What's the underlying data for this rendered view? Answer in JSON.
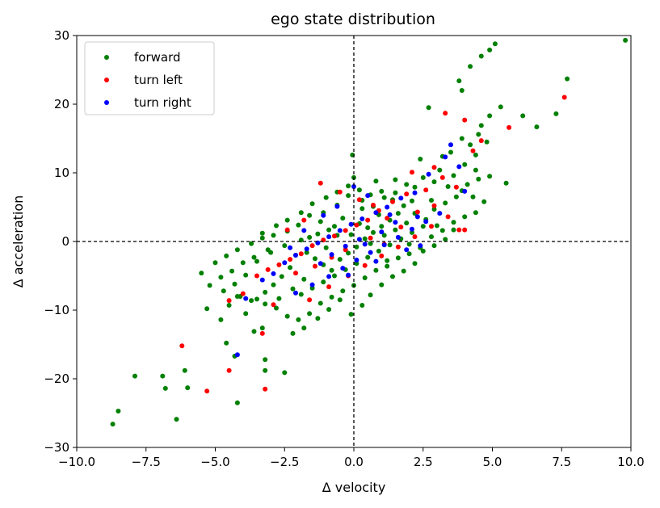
{
  "chart_data": {
    "type": "scatter",
    "title": "ego state distribution",
    "xlabel": "Δ velocity",
    "ylabel": "Δ acceleration",
    "xlim": [
      -10.0,
      10.0
    ],
    "ylim": [
      -30,
      30
    ],
    "xticks": [
      "−10.0",
      "−7.5",
      "−5.0",
      "−2.5",
      "0.0",
      "2.5",
      "5.0",
      "7.5",
      "10.0"
    ],
    "yticks": [
      "−30",
      "−20",
      "−10",
      "0",
      "10",
      "20",
      "30"
    ],
    "grid": false,
    "legend_position": "top-left",
    "reference_lines": {
      "x": 0,
      "y": 0,
      "style": "dashed"
    },
    "series": [
      {
        "name": "forward",
        "color": "#008000",
        "points": [
          [
            9.8,
            29.3
          ],
          [
            5.1,
            28.8
          ],
          [
            4.9,
            27.9
          ],
          [
            4.6,
            27.0
          ],
          [
            4.2,
            25.5
          ],
          [
            3.8,
            23.4
          ],
          [
            7.7,
            23.7
          ],
          [
            3.9,
            22.0
          ],
          [
            2.7,
            19.5
          ],
          [
            5.3,
            19.6
          ],
          [
            6.1,
            18.3
          ],
          [
            7.3,
            18.6
          ],
          [
            4.9,
            18.3
          ],
          [
            4.6,
            16.9
          ],
          [
            6.6,
            16.7
          ],
          [
            4.5,
            15.6
          ],
          [
            3.9,
            15.0
          ],
          [
            4.8,
            14.5
          ],
          [
            4.2,
            14.1
          ],
          [
            3.5,
            13.0
          ],
          [
            3.2,
            12.4
          ],
          [
            4.4,
            12.6
          ],
          [
            -0.05,
            12.6
          ],
          [
            2.4,
            12.0
          ],
          [
            5.5,
            8.5
          ],
          [
            4.9,
            9.5
          ],
          [
            4.4,
            10.4
          ],
          [
            4.0,
            11.2
          ],
          [
            3.6,
            9.6
          ],
          [
            3.1,
            10.4
          ],
          [
            2.9,
            8.7
          ],
          [
            2.5,
            9.3
          ],
          [
            2.2,
            7.9
          ],
          [
            1.9,
            8.3
          ],
          [
            1.5,
            7.1
          ],
          [
            1.1,
            6.4
          ],
          [
            0.7,
            5.1
          ],
          [
            0.3,
            6.0
          ],
          [
            -0.2,
            6.7
          ],
          [
            -0.6,
            5.3
          ],
          [
            -1.1,
            4.2
          ],
          [
            -1.6,
            3.8
          ],
          [
            -2.0,
            2.4
          ],
          [
            -2.4,
            1.5
          ],
          [
            -2.9,
            0.9
          ],
          [
            -3.3,
            0.5
          ],
          [
            -3.1,
            -1.2
          ],
          [
            -3.6,
            -2.3
          ],
          [
            -4.0,
            -3.1
          ],
          [
            -4.4,
            -4.3
          ],
          [
            -4.8,
            -5.2
          ],
          [
            -5.2,
            -6.4
          ],
          [
            -4.7,
            -7.2
          ],
          [
            -4.2,
            -8.0
          ],
          [
            -3.7,
            -8.6
          ],
          [
            -3.2,
            -9.1
          ],
          [
            -2.8,
            -9.7
          ],
          [
            -2.4,
            -10.9
          ],
          [
            -2.0,
            -11.4
          ],
          [
            -1.6,
            -10.5
          ],
          [
            -1.2,
            -9.0
          ],
          [
            -0.8,
            -8.1
          ],
          [
            -0.4,
            -7.2
          ],
          [
            0.0,
            -6.4
          ],
          [
            0.4,
            -5.3
          ],
          [
            0.8,
            -4.2
          ],
          [
            1.2,
            -3.6
          ],
          [
            1.6,
            -2.4
          ],
          [
            2.0,
            -1.8
          ],
          [
            2.4,
            -0.9
          ],
          [
            2.8,
            0.7
          ],
          [
            3.2,
            1.6
          ],
          [
            3.6,
            2.8
          ],
          [
            4.0,
            3.6
          ],
          [
            4.4,
            4.2
          ],
          [
            4.7,
            5.8
          ],
          [
            4.3,
            6.5
          ],
          [
            3.9,
            7.4
          ],
          [
            -8.7,
            -26.6
          ],
          [
            -8.5,
            -24.7
          ],
          [
            -7.9,
            -19.6
          ],
          [
            -6.9,
            -19.6
          ],
          [
            -6.8,
            -21.4
          ],
          [
            -6.1,
            -18.8
          ],
          [
            -6.0,
            -21.3
          ],
          [
            -6.4,
            -25.9
          ],
          [
            -4.2,
            -23.5
          ],
          [
            -4.3,
            -16.7
          ],
          [
            -3.2,
            -17.2
          ],
          [
            -3.2,
            -18.8
          ],
          [
            -2.5,
            -19.1
          ],
          [
            -4.6,
            -14.8
          ],
          [
            -3.6,
            -13.1
          ],
          [
            -4.8,
            -11.4
          ],
          [
            -5.3,
            -9.8
          ],
          [
            -4.5,
            -9.3
          ],
          [
            -3.9,
            -10.5
          ],
          [
            -3.3,
            -12.6
          ],
          [
            -2.2,
            -13.4
          ],
          [
            -1.8,
            -12.6
          ],
          [
            -1.3,
            -11.2
          ],
          [
            -0.9,
            -9.9
          ],
          [
            -0.5,
            -8.5
          ],
          [
            -0.1,
            -10.6
          ],
          [
            0.3,
            -9.3
          ],
          [
            0.6,
            -7.8
          ],
          [
            1.0,
            -6.3
          ],
          [
            1.4,
            -5.1
          ],
          [
            1.8,
            -4.3
          ],
          [
            2.2,
            -3.2
          ],
          [
            2.5,
            -1.4
          ],
          [
            2.9,
            -0.6
          ],
          [
            3.3,
            0.3
          ],
          [
            3.6,
            1.7
          ],
          [
            -5.5,
            -4.6
          ],
          [
            -5.0,
            -3.1
          ],
          [
            -4.6,
            -2.1
          ],
          [
            -4.2,
            -1.2
          ],
          [
            -3.7,
            -0.3
          ],
          [
            -3.3,
            1.2
          ],
          [
            -2.8,
            2.3
          ],
          [
            -2.4,
            3.1
          ],
          [
            -1.9,
            4.2
          ],
          [
            -1.5,
            5.5
          ],
          [
            -1.0,
            6.4
          ],
          [
            -0.6,
            7.2
          ],
          [
            -0.2,
            8.1
          ],
          [
            0.2,
            7.5
          ],
          [
            0.6,
            6.8
          ],
          [
            1.0,
            7.3
          ],
          [
            1.4,
            6.1
          ],
          [
            1.8,
            5.2
          ],
          [
            2.2,
            4.1
          ],
          [
            2.6,
            3.2
          ],
          [
            3.0,
            2.3
          ],
          [
            -1.7,
            -1.6
          ],
          [
            -1.4,
            -2.5
          ],
          [
            -1.1,
            -3.4
          ],
          [
            -0.8,
            -4.2
          ],
          [
            -0.5,
            -2.6
          ],
          [
            -0.2,
            -1.7
          ],
          [
            0.1,
            -0.8
          ],
          [
            0.4,
            0.4
          ],
          [
            0.7,
            1.3
          ],
          [
            1.0,
            2.2
          ],
          [
            1.3,
            3.1
          ],
          [
            1.6,
            4.1
          ],
          [
            1.9,
            2.7
          ],
          [
            -2.3,
            -3.8
          ],
          [
            -2.6,
            -5.1
          ],
          [
            -2.9,
            -6.3
          ],
          [
            -3.2,
            -7.4
          ],
          [
            -3.5,
            -8.4
          ],
          [
            -1.9,
            -7.7
          ],
          [
            -1.5,
            -6.8
          ],
          [
            -1.1,
            -5.9
          ],
          [
            -0.7,
            -5.0
          ],
          [
            -0.3,
            -4.1
          ],
          [
            0.1,
            -3.2
          ],
          [
            0.5,
            -2.3
          ],
          [
            0.9,
            -1.4
          ],
          [
            1.3,
            -0.5
          ],
          [
            1.7,
            0.4
          ],
          [
            2.1,
            1.3
          ],
          [
            2.5,
            2.2
          ],
          [
            2.9,
            4.7
          ],
          [
            3.3,
            5.6
          ],
          [
            3.7,
            6.5
          ],
          [
            4.1,
            8.3
          ],
          [
            4.5,
            9.1
          ],
          [
            3.4,
            8.0
          ],
          [
            2.8,
            6.0
          ],
          [
            2.1,
            5.9
          ],
          [
            1.5,
            9.0
          ],
          [
            0.8,
            8.8
          ],
          [
            0.0,
            9.3
          ],
          [
            -0.7,
            2.2
          ],
          [
            -1.3,
            1.1
          ],
          [
            -1.9,
            0.2
          ],
          [
            -2.5,
            -0.6
          ],
          [
            -3.0,
            -1.6
          ],
          [
            -3.5,
            -2.9
          ],
          [
            -3.9,
            -4.9
          ],
          [
            -4.3,
            -6.2
          ],
          [
            -4.1,
            -8.0
          ],
          [
            -2.7,
            -8.3
          ],
          [
            -2.2,
            -6.9
          ],
          [
            -1.8,
            -5.5
          ],
          [
            -1.0,
            -0.9
          ],
          [
            -0.6,
            0.9
          ],
          [
            0.2,
            2.6
          ],
          [
            0.9,
            3.9
          ],
          [
            1.5,
            1.7
          ],
          [
            2.0,
            -0.4
          ],
          [
            1.2,
            -2.8
          ],
          [
            0.6,
            -0.3
          ],
          [
            -0.4,
            3.4
          ],
          [
            -1.2,
            2.9
          ],
          [
            -1.6,
            0.6
          ],
          [
            -2.1,
            -2.0
          ],
          [
            -0.9,
            1.7
          ],
          [
            0.3,
            4.8
          ],
          [
            1.1,
            0.9
          ],
          [
            -0.1,
            1.0
          ],
          [
            0.5,
            2.0
          ]
        ]
      },
      {
        "name": "turn left",
        "color": "#ff0000",
        "points": [
          [
            7.6,
            21.0
          ],
          [
            5.6,
            16.6
          ],
          [
            4.0,
            17.7
          ],
          [
            3.3,
            18.7
          ],
          [
            4.3,
            13.2
          ],
          [
            4.6,
            14.7
          ],
          [
            2.9,
            10.8
          ],
          [
            2.1,
            10.1
          ],
          [
            3.2,
            9.3
          ],
          [
            3.7,
            7.9
          ],
          [
            2.6,
            7.5
          ],
          [
            1.9,
            6.9
          ],
          [
            1.4,
            5.8
          ],
          [
            0.9,
            4.5
          ],
          [
            0.5,
            3.1
          ],
          [
            0.1,
            2.4
          ],
          [
            -0.3,
            1.6
          ],
          [
            -0.7,
            0.8
          ],
          [
            -1.1,
            0.2
          ],
          [
            -1.5,
            -0.6
          ],
          [
            -1.9,
            -1.8
          ],
          [
            -2.3,
            -2.6
          ],
          [
            -2.7,
            -3.4
          ],
          [
            -3.1,
            -4.1
          ],
          [
            -3.5,
            -5.0
          ],
          [
            -4.0,
            -7.6
          ],
          [
            -4.5,
            -8.6
          ],
          [
            -3.3,
            -13.4
          ],
          [
            -4.5,
            -18.8
          ],
          [
            -5.3,
            -21.8
          ],
          [
            -3.2,
            -21.5
          ],
          [
            -6.2,
            -15.2
          ],
          [
            -2.9,
            -9.2
          ],
          [
            -1.6,
            -8.5
          ],
          [
            -0.9,
            -6.6
          ],
          [
            -0.2,
            -5.0
          ],
          [
            0.4,
            -3.5
          ],
          [
            1.0,
            -2.1
          ],
          [
            1.6,
            -0.8
          ],
          [
            2.2,
            0.7
          ],
          [
            2.8,
            2.2
          ],
          [
            3.4,
            3.6
          ],
          [
            4.0,
            1.7
          ],
          [
            3.8,
            1.7
          ],
          [
            -1.2,
            8.5
          ],
          [
            -0.5,
            7.2
          ],
          [
            0.2,
            6.1
          ],
          [
            0.7,
            5.3
          ],
          [
            1.2,
            3.4
          ],
          [
            1.7,
            2.1
          ],
          [
            2.3,
            4.3
          ],
          [
            2.9,
            5.2
          ],
          [
            -1.8,
            3.1
          ],
          [
            -2.4,
            1.7
          ],
          [
            -0.8,
            -2.3
          ],
          [
            -0.3,
            -1.2
          ],
          [
            0.6,
            0.5
          ],
          [
            1.1,
            -0.4
          ],
          [
            -2.1,
            -4.6
          ],
          [
            -1.4,
            -3.6
          ]
        ]
      },
      {
        "name": "turn right",
        "color": "#0000ff",
        "points": [
          [
            3.5,
            14.1
          ],
          [
            3.3,
            12.3
          ],
          [
            2.7,
            9.8
          ],
          [
            4.0,
            7.3
          ],
          [
            3.8,
            10.9
          ],
          [
            2.2,
            7.1
          ],
          [
            1.7,
            6.3
          ],
          [
            1.2,
            5.0
          ],
          [
            0.8,
            4.2
          ],
          [
            0.3,
            3.3
          ],
          [
            -0.1,
            2.5
          ],
          [
            -0.5,
            1.6
          ],
          [
            -0.9,
            0.7
          ],
          [
            -1.3,
            -0.2
          ],
          [
            -1.7,
            -1.1
          ],
          [
            -2.1,
            -2.0
          ],
          [
            -2.5,
            -3.1
          ],
          [
            -2.9,
            -4.7
          ],
          [
            -3.3,
            -5.6
          ],
          [
            -3.9,
            -8.3
          ],
          [
            -4.2,
            -16.5
          ],
          [
            -2.1,
            -7.5
          ],
          [
            -1.5,
            -6.3
          ],
          [
            -0.9,
            -5.1
          ],
          [
            -0.4,
            -3.9
          ],
          [
            0.1,
            -2.7
          ],
          [
            0.6,
            -1.6
          ],
          [
            1.1,
            -0.5
          ],
          [
            1.6,
            0.6
          ],
          [
            2.1,
            1.8
          ],
          [
            2.6,
            2.9
          ],
          [
            3.1,
            4.1
          ],
          [
            2.4,
            -0.6
          ],
          [
            -0.6,
            5.1
          ],
          [
            -1.1,
            3.8
          ],
          [
            0.5,
            6.7
          ],
          [
            1.5,
            2.8
          ],
          [
            1.0,
            1.4
          ],
          [
            0.2,
            0.3
          ],
          [
            -0.3,
            -0.7
          ],
          [
            -0.8,
            -1.9
          ],
          [
            -1.2,
            -3.2
          ],
          [
            0.8,
            -2.9
          ],
          [
            1.9,
            -1.2
          ],
          [
            2.3,
            3.6
          ],
          [
            -1.8,
            1.6
          ],
          [
            -2.3,
            -0.9
          ],
          [
            0.0,
            8.0
          ],
          [
            -0.2,
            -4.9
          ],
          [
            1.3,
            3.9
          ],
          [
            0.4,
            -0.4
          ]
        ]
      }
    ]
  }
}
